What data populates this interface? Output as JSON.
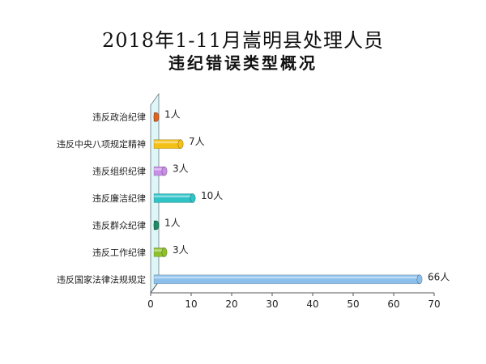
{
  "chart_data": {
    "type": "bar",
    "orientation": "horizontal",
    "title": "2018年1-11月嵩明县处理人员",
    "subtitle": "违纪错误类型概况",
    "categories": [
      "违反政治纪律",
      "违反中央八项规定精神",
      "违反组织纪律",
      "违反廉洁纪律",
      "违反群众纪律",
      "违反工作纪律",
      "违反国家法律法规规定"
    ],
    "values": [
      1,
      7,
      3,
      10,
      1,
      3,
      66
    ],
    "data_labels": [
      "1人",
      "7人",
      "3人",
      "10人",
      "1人",
      "3人",
      "66人"
    ],
    "colors": [
      "#e0641e",
      "#f5c016",
      "#c98ee8",
      "#2fc3c6",
      "#1f8a64",
      "#8fc02c",
      "#8cc0ec"
    ],
    "xlim": [
      0,
      70
    ],
    "xticks": [
      "0",
      "10",
      "20",
      "30",
      "40",
      "50",
      "60",
      "70"
    ],
    "xlabel": "",
    "ylabel": "",
    "grid": false,
    "legend": "none"
  }
}
